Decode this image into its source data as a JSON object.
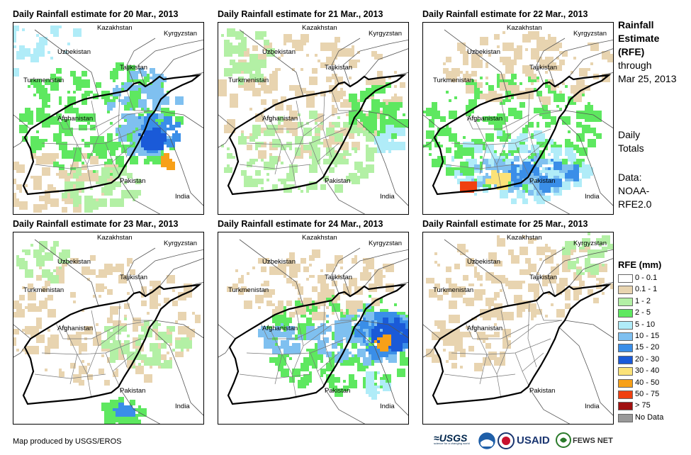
{
  "panels": [
    {
      "title": "Daily Rainfall estimate for 20 Mar., 2013",
      "rain": "heavy-east"
    },
    {
      "title": "Daily Rainfall estimate for 21 Mar., 2013",
      "rain": "light"
    },
    {
      "title": "Daily Rainfall estimate for 22 Mar., 2013",
      "rain": "south-heavy"
    },
    {
      "title": "Daily Rainfall estimate for 23 Mar., 2013",
      "rain": "trace"
    },
    {
      "title": "Daily Rainfall estimate for 24 Mar., 2013",
      "rain": "northeast-heavy"
    },
    {
      "title": "Daily Rainfall estimate for 25 Mar., 2013",
      "rain": "dry"
    }
  ],
  "map_labels": {
    "kazakhstan": "Kazakhstan",
    "kyrgyzstan": "Kyrgyzstan",
    "uzbekistan": "Uzbekistan",
    "tajikistan": "Tajikistan",
    "turkmenistan": "Turkmenistan",
    "afghanistan": "Afghanistan",
    "pakistan": "Pakistan",
    "india": "India"
  },
  "sidebar": {
    "title_line1": "Rainfall",
    "title_line2": "Estimate",
    "title_line3": "(RFE)",
    "through_line1": "through",
    "through_line2": "Mar 25, 2013",
    "totals_line1": "Daily",
    "totals_line2": "Totals",
    "data_line1": "Data:",
    "data_line2": "NOAA-",
    "data_line3": "RFE2.0"
  },
  "legend": {
    "title": "RFE (mm)",
    "items": [
      {
        "label": "0 - 0.1",
        "color": "#ffffff"
      },
      {
        "label": "0.1 - 1",
        "color": "#e8d4b0"
      },
      {
        "label": "1 - 2",
        "color": "#b3f0a5"
      },
      {
        "label": "2 - 5",
        "color": "#5ee860"
      },
      {
        "label": "5 - 10",
        "color": "#b0ecf8"
      },
      {
        "label": "10 - 15",
        "color": "#7fc0f0"
      },
      {
        "label": "15 - 20",
        "color": "#3a8ee8"
      },
      {
        "label": "20 - 30",
        "color": "#1a5ad8"
      },
      {
        "label": "30 - 40",
        "color": "#fbe278"
      },
      {
        "label": "40 - 50",
        "color": "#f7a018"
      },
      {
        "label": "50 - 75",
        "color": "#f04010"
      },
      {
        "label": "> 75",
        "color": "#a01010"
      },
      {
        "label": "No Data",
        "color": "#999999"
      }
    ]
  },
  "footer": {
    "credit": "Map produced by USGS/EROS"
  },
  "logos": {
    "usgs": "USGS",
    "usaid": "USAID",
    "fewsnet": "FEWS NET",
    "usgs_tagline": "science for a changing world"
  }
}
